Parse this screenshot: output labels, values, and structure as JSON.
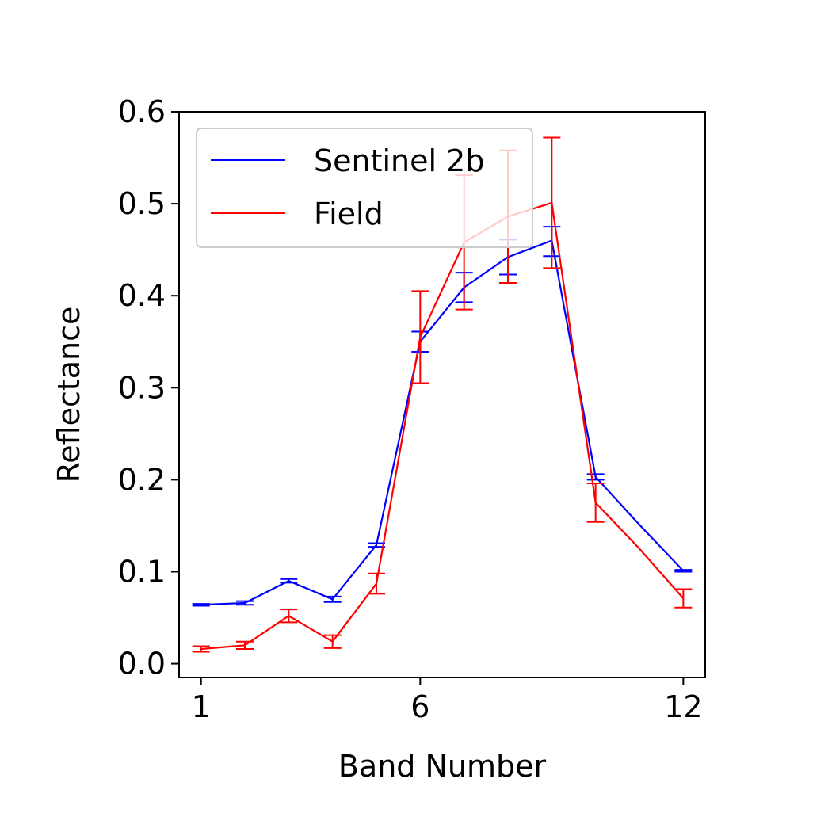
{
  "chart_data": {
    "type": "line",
    "xlabel": "Band Number",
    "ylabel": "Reflectance",
    "xlim": [
      0.5,
      12.5
    ],
    "ylim": [
      -0.015,
      0.6
    ],
    "xticks": [
      1,
      6,
      12
    ],
    "yticks": [
      0.0,
      0.1,
      0.2,
      0.3,
      0.4,
      0.5,
      0.6
    ],
    "ytick_labels": [
      "0.0",
      "0.1",
      "0.2",
      "0.3",
      "0.4",
      "0.5",
      "0.6"
    ],
    "xtick_labels": [
      "1",
      "6",
      "12"
    ],
    "legend_position": "top-left",
    "grid": false,
    "series": [
      {
        "name": "Sentinel 2b",
        "color": "#0000ff",
        "x": [
          1,
          2,
          3,
          4,
          5,
          6,
          7,
          8,
          9,
          10,
          11,
          12
        ],
        "values": [
          0.064,
          0.066,
          0.09,
          0.07,
          0.129,
          0.35,
          0.409,
          0.442,
          0.46,
          0.203,
          0.151,
          0.101
        ],
        "errors": [
          0.001,
          0.002,
          0.002,
          0.003,
          0.002,
          0.011,
          0.016,
          0.019,
          0.016,
          0.003,
          0.0,
          0.001
        ],
        "error_x": [
          1,
          2,
          3,
          4,
          5,
          6,
          7,
          8,
          9,
          10,
          12
        ],
        "error_values": [
          0.064,
          0.066,
          0.09,
          0.07,
          0.129,
          0.35,
          0.409,
          0.442,
          0.459,
          0.203,
          0.101
        ],
        "error_sizes": [
          0.001,
          0.002,
          0.002,
          0.003,
          0.002,
          0.011,
          0.016,
          0.019,
          0.016,
          0.003,
          0.001
        ]
      },
      {
        "name": "Field",
        "color": "#ff0000",
        "x": [
          1,
          2,
          3,
          4,
          5,
          6,
          7,
          8,
          9,
          10,
          11,
          12
        ],
        "values": [
          0.016,
          0.02,
          0.052,
          0.024,
          0.087,
          0.355,
          0.458,
          0.486,
          0.501,
          0.175,
          0.125,
          0.071
        ],
        "error_x": [
          1,
          2,
          3,
          4,
          5,
          6,
          7,
          8,
          9,
          10,
          12
        ],
        "error_values": [
          0.016,
          0.02,
          0.052,
          0.024,
          0.087,
          0.355,
          0.458,
          0.486,
          0.501,
          0.175,
          0.071
        ],
        "error_sizes": [
          0.003,
          0.004,
          0.007,
          0.007,
          0.011,
          0.05,
          0.073,
          0.072,
          0.071,
          0.021,
          0.01
        ]
      }
    ]
  }
}
